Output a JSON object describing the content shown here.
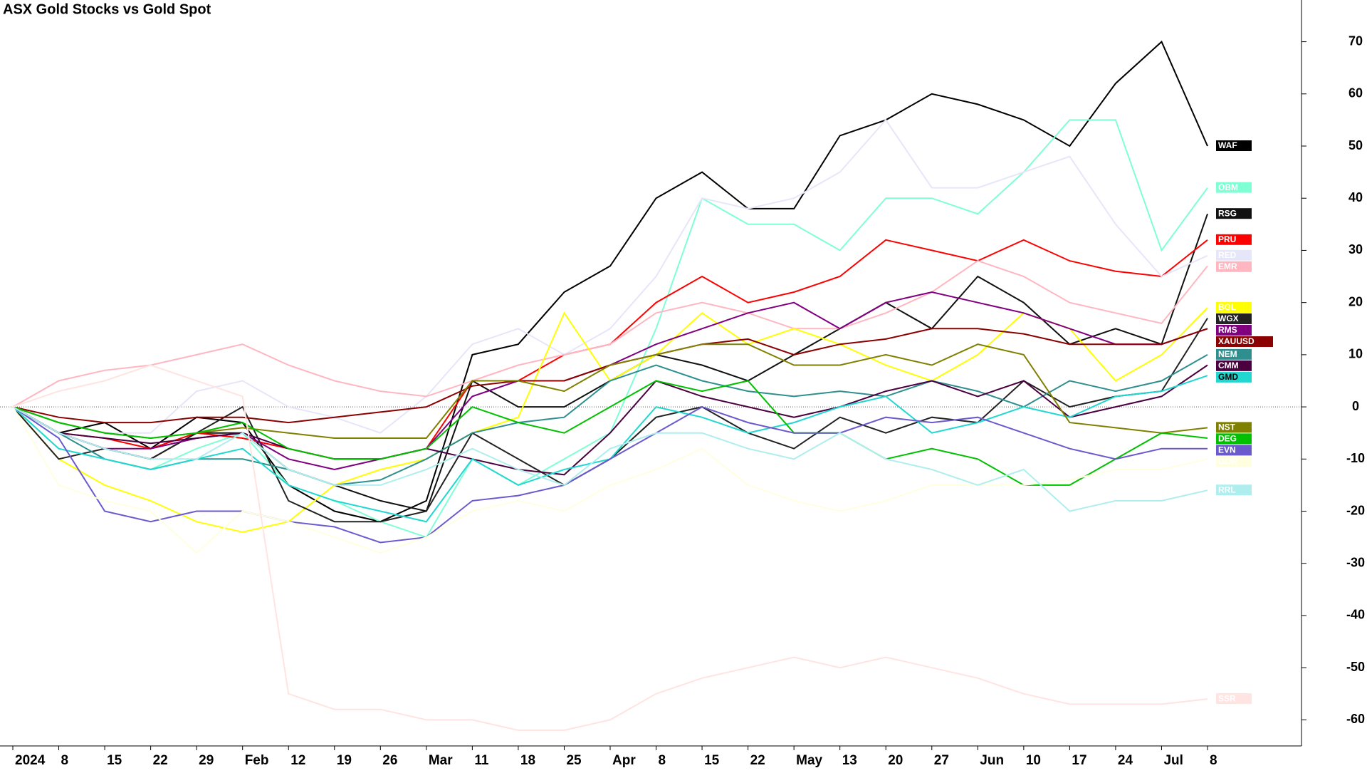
{
  "chart_data": {
    "type": "line",
    "title": "ASX Gold Stocks vs Gold Spot",
    "categories": [
      "2024",
      "8",
      "15",
      "22",
      "29",
      "Feb",
      "12",
      "19",
      "26",
      "Mar",
      "11",
      "18",
      "25",
      "Apr",
      "8",
      "15",
      "22",
      "May",
      "13",
      "20",
      "27",
      "Jun",
      "10",
      "17",
      "24",
      "Jul",
      "8"
    ],
    "ylim": [
      -65,
      78
    ],
    "yticks": [
      -60,
      -50,
      -40,
      -30,
      -20,
      -10,
      0,
      10,
      20,
      30,
      40,
      50,
      60,
      70
    ],
    "y_axis_side": "right",
    "zero_line": true,
    "series": [
      {
        "name": "WAF",
        "color": "#000000",
        "values": [
          0,
          -5,
          -3,
          -8,
          -2,
          -3,
          -15,
          -20,
          -22,
          -18,
          10,
          12,
          22,
          27,
          40,
          45,
          38,
          38,
          52,
          55,
          60,
          58,
          55,
          50,
          62,
          70,
          50
        ]
      },
      {
        "name": "OBM",
        "color": "#7fffd4",
        "values": [
          0,
          -8,
          -10,
          -12,
          -8,
          -5,
          -15,
          -18,
          -22,
          -25,
          -10,
          -15,
          -10,
          -5,
          15,
          40,
          35,
          35,
          30,
          40,
          40,
          37,
          45,
          55,
          55,
          30,
          42
        ]
      },
      {
        "name": "RSG",
        "color": "#111111",
        "values": [
          0,
          -5,
          -8,
          -10,
          -5,
          -5,
          -12,
          -15,
          -18,
          -20,
          5,
          0,
          0,
          5,
          10,
          8,
          5,
          10,
          15,
          20,
          15,
          25,
          20,
          12,
          15,
          12,
          37
        ]
      },
      {
        "name": "PRU",
        "color": "#ff0000",
        "values": [
          0,
          -5,
          -6,
          -8,
          -5,
          -6,
          -8,
          -10,
          -10,
          -8,
          5,
          5,
          10,
          12,
          20,
          25,
          20,
          22,
          25,
          32,
          30,
          28,
          32,
          28,
          26,
          25,
          32
        ]
      },
      {
        "name": "RED",
        "color": "#e6e6fa",
        "values": [
          0,
          -3,
          -5,
          -5,
          3,
          5,
          0,
          -2,
          -5,
          2,
          12,
          15,
          10,
          15,
          25,
          40,
          38,
          40,
          45,
          55,
          42,
          42,
          45,
          48,
          35,
          25,
          29
        ]
      },
      {
        "name": "EMR",
        "color": "#ffb6c1",
        "values": [
          0,
          5,
          7,
          8,
          10,
          12,
          8,
          5,
          3,
          2,
          5,
          8,
          10,
          12,
          18,
          20,
          18,
          15,
          15,
          18,
          22,
          28,
          25,
          20,
          18,
          16,
          27
        ]
      },
      {
        "name": "BGL",
        "color": "#ffff00",
        "values": [
          0,
          -10,
          -15,
          -18,
          -22,
          -24,
          -22,
          -15,
          -12,
          -10,
          -5,
          -2,
          18,
          5,
          10,
          18,
          12,
          15,
          12,
          8,
          5,
          10,
          18,
          15,
          5,
          10,
          19
        ]
      },
      {
        "name": "WGX",
        "color": "#222222",
        "values": [
          0,
          -10,
          -8,
          -10,
          -5,
          0,
          -18,
          -22,
          -22,
          -20,
          -5,
          -10,
          -15,
          -10,
          -2,
          0,
          -5,
          -8,
          -2,
          -5,
          -2,
          -3,
          5,
          0,
          2,
          3,
          17
        ]
      },
      {
        "name": "RMS",
        "color": "#800080",
        "values": [
          0,
          -5,
          -8,
          -8,
          -6,
          -5,
          -10,
          -12,
          -10,
          -8,
          2,
          5,
          5,
          8,
          12,
          15,
          18,
          20,
          15,
          20,
          22,
          20,
          18,
          15,
          12,
          12,
          15
        ]
      },
      {
        "name": "XAUUSD",
        "color": "#8b0000",
        "values": [
          0,
          -2,
          -3,
          -3,
          -2,
          -2,
          -3,
          -2,
          -1,
          0,
          4,
          5,
          5,
          8,
          10,
          12,
          13,
          10,
          12,
          13,
          15,
          15,
          14,
          12,
          12,
          12,
          15
        ]
      },
      {
        "name": "NEM",
        "color": "#2f8f8f",
        "values": [
          0,
          -5,
          -10,
          -12,
          -10,
          -10,
          -12,
          -15,
          -14,
          -10,
          -5,
          -3,
          -2,
          5,
          8,
          5,
          3,
          2,
          3,
          2,
          5,
          3,
          0,
          5,
          3,
          5,
          10
        ]
      },
      {
        "name": "CMM",
        "color": "#4b0040",
        "values": [
          0,
          -5,
          -6,
          -7,
          -6,
          -5,
          -8,
          -10,
          -10,
          -8,
          -10,
          -12,
          -13,
          -5,
          5,
          2,
          0,
          -2,
          0,
          3,
          5,
          2,
          5,
          -2,
          0,
          2,
          8
        ]
      },
      {
        "name": "GMD",
        "color": "#20d8d0",
        "values": [
          0,
          -8,
          -10,
          -12,
          -10,
          -8,
          -15,
          -18,
          -20,
          -22,
          -10,
          -15,
          -12,
          -10,
          0,
          -2,
          -5,
          -3,
          0,
          2,
          -5,
          -3,
          0,
          -2,
          2,
          3,
          6
        ]
      },
      {
        "name": "NST",
        "color": "#808000",
        "values": [
          0,
          -3,
          -5,
          -6,
          -5,
          -4,
          -5,
          -6,
          -6,
          -6,
          5,
          5,
          3,
          8,
          10,
          12,
          12,
          8,
          8,
          10,
          8,
          12,
          10,
          -3,
          -4,
          -5,
          -4
        ]
      },
      {
        "name": "DEG",
        "color": "#00c000",
        "values": [
          0,
          -3,
          -5,
          -6,
          -5,
          -3,
          -8,
          -10,
          -10,
          -8,
          0,
          -3,
          -5,
          0,
          5,
          3,
          5,
          -5,
          -5,
          -10,
          -8,
          -10,
          -15,
          -15,
          -10,
          -5,
          -6
        ]
      },
      {
        "name": "EVN",
        "color": "#6a5acd",
        "values": [
          0,
          -6,
          -20,
          -22,
          -20,
          -20,
          -22,
          -23,
          -26,
          -25,
          -18,
          -17,
          -15,
          -10,
          -5,
          0,
          -3,
          -5,
          -5,
          -2,
          -3,
          -2,
          -5,
          -8,
          -10,
          -8,
          -8
        ]
      },
      {
        "name": "GOR",
        "color": "#ffffe0",
        "values": [
          0,
          -15,
          -18,
          -20,
          -28,
          -20,
          -22,
          -25,
          -28,
          -25,
          -20,
          -18,
          -20,
          -15,
          -12,
          -8,
          -15,
          -18,
          -20,
          -18,
          -15,
          -15,
          -15,
          -14,
          -12,
          -12,
          -10
        ]
      },
      {
        "name": "RRL",
        "color": "#afeeee",
        "values": [
          0,
          -5,
          -8,
          -10,
          -10,
          -5,
          -12,
          -15,
          -15,
          -12,
          -8,
          -12,
          -15,
          -8,
          -5,
          -5,
          -8,
          -10,
          -5,
          -10,
          -12,
          -15,
          -12,
          -20,
          -18,
          -18,
          -16
        ]
      },
      {
        "name": "SSR",
        "color": "#ffe4e1",
        "values": [
          0,
          3,
          5,
          8,
          5,
          2,
          -55,
          -58,
          -58,
          -60,
          -60,
          -62,
          -62,
          -60,
          -55,
          -52,
          -50,
          -48,
          -50,
          -48,
          -50,
          -52,
          -55,
          -57,
          -57,
          -57,
          -56
        ]
      }
    ]
  }
}
